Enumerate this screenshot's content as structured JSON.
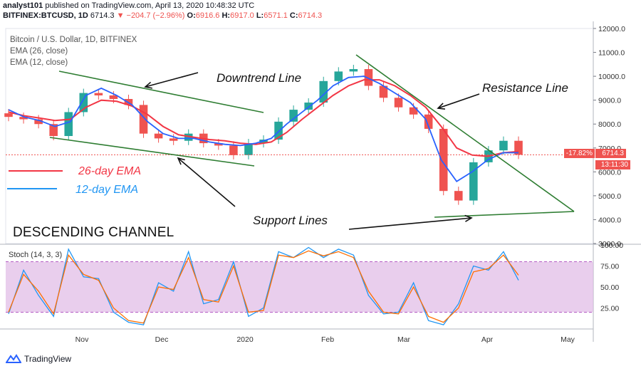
{
  "header": {
    "publisher": "analyst101",
    "published_text": " published on TradingView.com, April 13, 2020 10:48:32 UTC",
    "symbol_line": "BITFINEX:BTCUSD, 1D",
    "close": "6714.3",
    "change": "−204.7 (−2.96%)",
    "o_label": "O:",
    "o_value": "6916.6",
    "h_label": "H:",
    "h_value": "6917.0",
    "l_label": "L:",
    "l_value": "6571.1",
    "c_label": "C:",
    "c_value": "6714.3"
  },
  "legend": {
    "title": "Bitcoin / U.S. Dollar, 1D, BITFINEX",
    "ema26": "EMA (26, close)",
    "ema12": "EMA (12, close)"
  },
  "annotations": {
    "downtrend": "Downtrend Line",
    "resistance": "Resistance Line",
    "support": "Support Lines",
    "channel": "DESCENDING CHANNEL",
    "ema26_label": "26-day EMA",
    "ema12_label": "12-day EMA"
  },
  "badges": {
    "percent": "-17.82%",
    "price": "6714.3",
    "countdown": "13:11:30"
  },
  "stoch": {
    "title": "Stoch (14, 3, 3)"
  },
  "footer": {
    "brand": "TradingView"
  },
  "colors": {
    "ema26": "#f23645",
    "ema12": "#2962ff",
    "stoch_k": "#2196f3",
    "stoch_d": "#ff6d00",
    "band": "#e1bee7",
    "trend": "#2e7d32",
    "up": "#26a69a",
    "down": "#ef5350"
  },
  "chart_data": [
    {
      "type": "candlestick",
      "title": "Bitcoin / U.S. Dollar, 1D, BITFINEX",
      "x_ticks": [
        "Nov",
        "Dec",
        "2020",
        "Feb",
        "Mar",
        "Apr",
        "May"
      ],
      "y_ticks": [
        "3000.0",
        "4000.0",
        "5000.0",
        "6000.0",
        "7000.0",
        "8000.0",
        "9000.0",
        "10000.0",
        "11000.0",
        "12000.0"
      ],
      "ylim": [
        3000,
        12000
      ],
      "series": [
        {
          "name": "EMA (26, close)",
          "values": [
            8500,
            8350,
            8250,
            8150,
            8200,
            8700,
            9000,
            8950,
            8750,
            8400,
            7900,
            7550,
            7450,
            7350,
            7300,
            7200,
            7150,
            7250,
            7650,
            8200,
            8700,
            9200,
            9600,
            9850,
            9850,
            9600,
            9200,
            8700,
            7900,
            7000,
            6700,
            6650,
            6800,
            6850
          ]
        },
        {
          "name": "EMA (12, close)",
          "values": [
            8600,
            8300,
            8150,
            7900,
            8100,
            9200,
            9500,
            9200,
            8800,
            8100,
            7600,
            7400,
            7400,
            7250,
            7150,
            7100,
            7200,
            7400,
            8000,
            8500,
            9000,
            9600,
            9950,
            10000,
            9700,
            9300,
            8900,
            8200,
            6500,
            5600,
            6000,
            6500,
            6800,
            6800
          ]
        }
      ],
      "closes": [
        8300,
        8200,
        8000,
        7500,
        8500,
        9300,
        9200,
        9050,
        8800,
        7600,
        7400,
        7300,
        7600,
        7200,
        7100,
        6700,
        7200,
        7350,
        8100,
        8600,
        8900,
        9800,
        10200,
        10300,
        9600,
        9100,
        8700,
        8400,
        7800,
        5200,
        4800,
        6400,
        6900,
        7300,
        6714.3
      ],
      "last_close": 6714.3,
      "trend_lines": [
        "Downtrend Line",
        "Resistance Line",
        "Support Lines"
      ]
    },
    {
      "type": "line",
      "title": "Stoch (14, 3, 3)",
      "y_ticks": [
        "25.00",
        "50.00",
        "75.00",
        "100.00"
      ],
      "ylim": [
        0,
        100
      ],
      "band": [
        20,
        80
      ],
      "series": [
        {
          "name": "K",
          "values": [
            18,
            70,
            40,
            15,
            95,
            62,
            60,
            20,
            8,
            5,
            55,
            45,
            92,
            30,
            35,
            80,
            15,
            25,
            92,
            85,
            97,
            85,
            95,
            88,
            40,
            18,
            20,
            55,
            10,
            5,
            30,
            75,
            70,
            92,
            58
          ]
        },
        {
          "name": "D",
          "values": [
            20,
            65,
            45,
            18,
            88,
            65,
            58,
            25,
            10,
            7,
            50,
            47,
            85,
            35,
            32,
            75,
            20,
            22,
            88,
            85,
            93,
            87,
            92,
            85,
            45,
            20,
            18,
            50,
            15,
            8,
            25,
            68,
            72,
            88,
            64
          ]
        }
      ]
    }
  ]
}
